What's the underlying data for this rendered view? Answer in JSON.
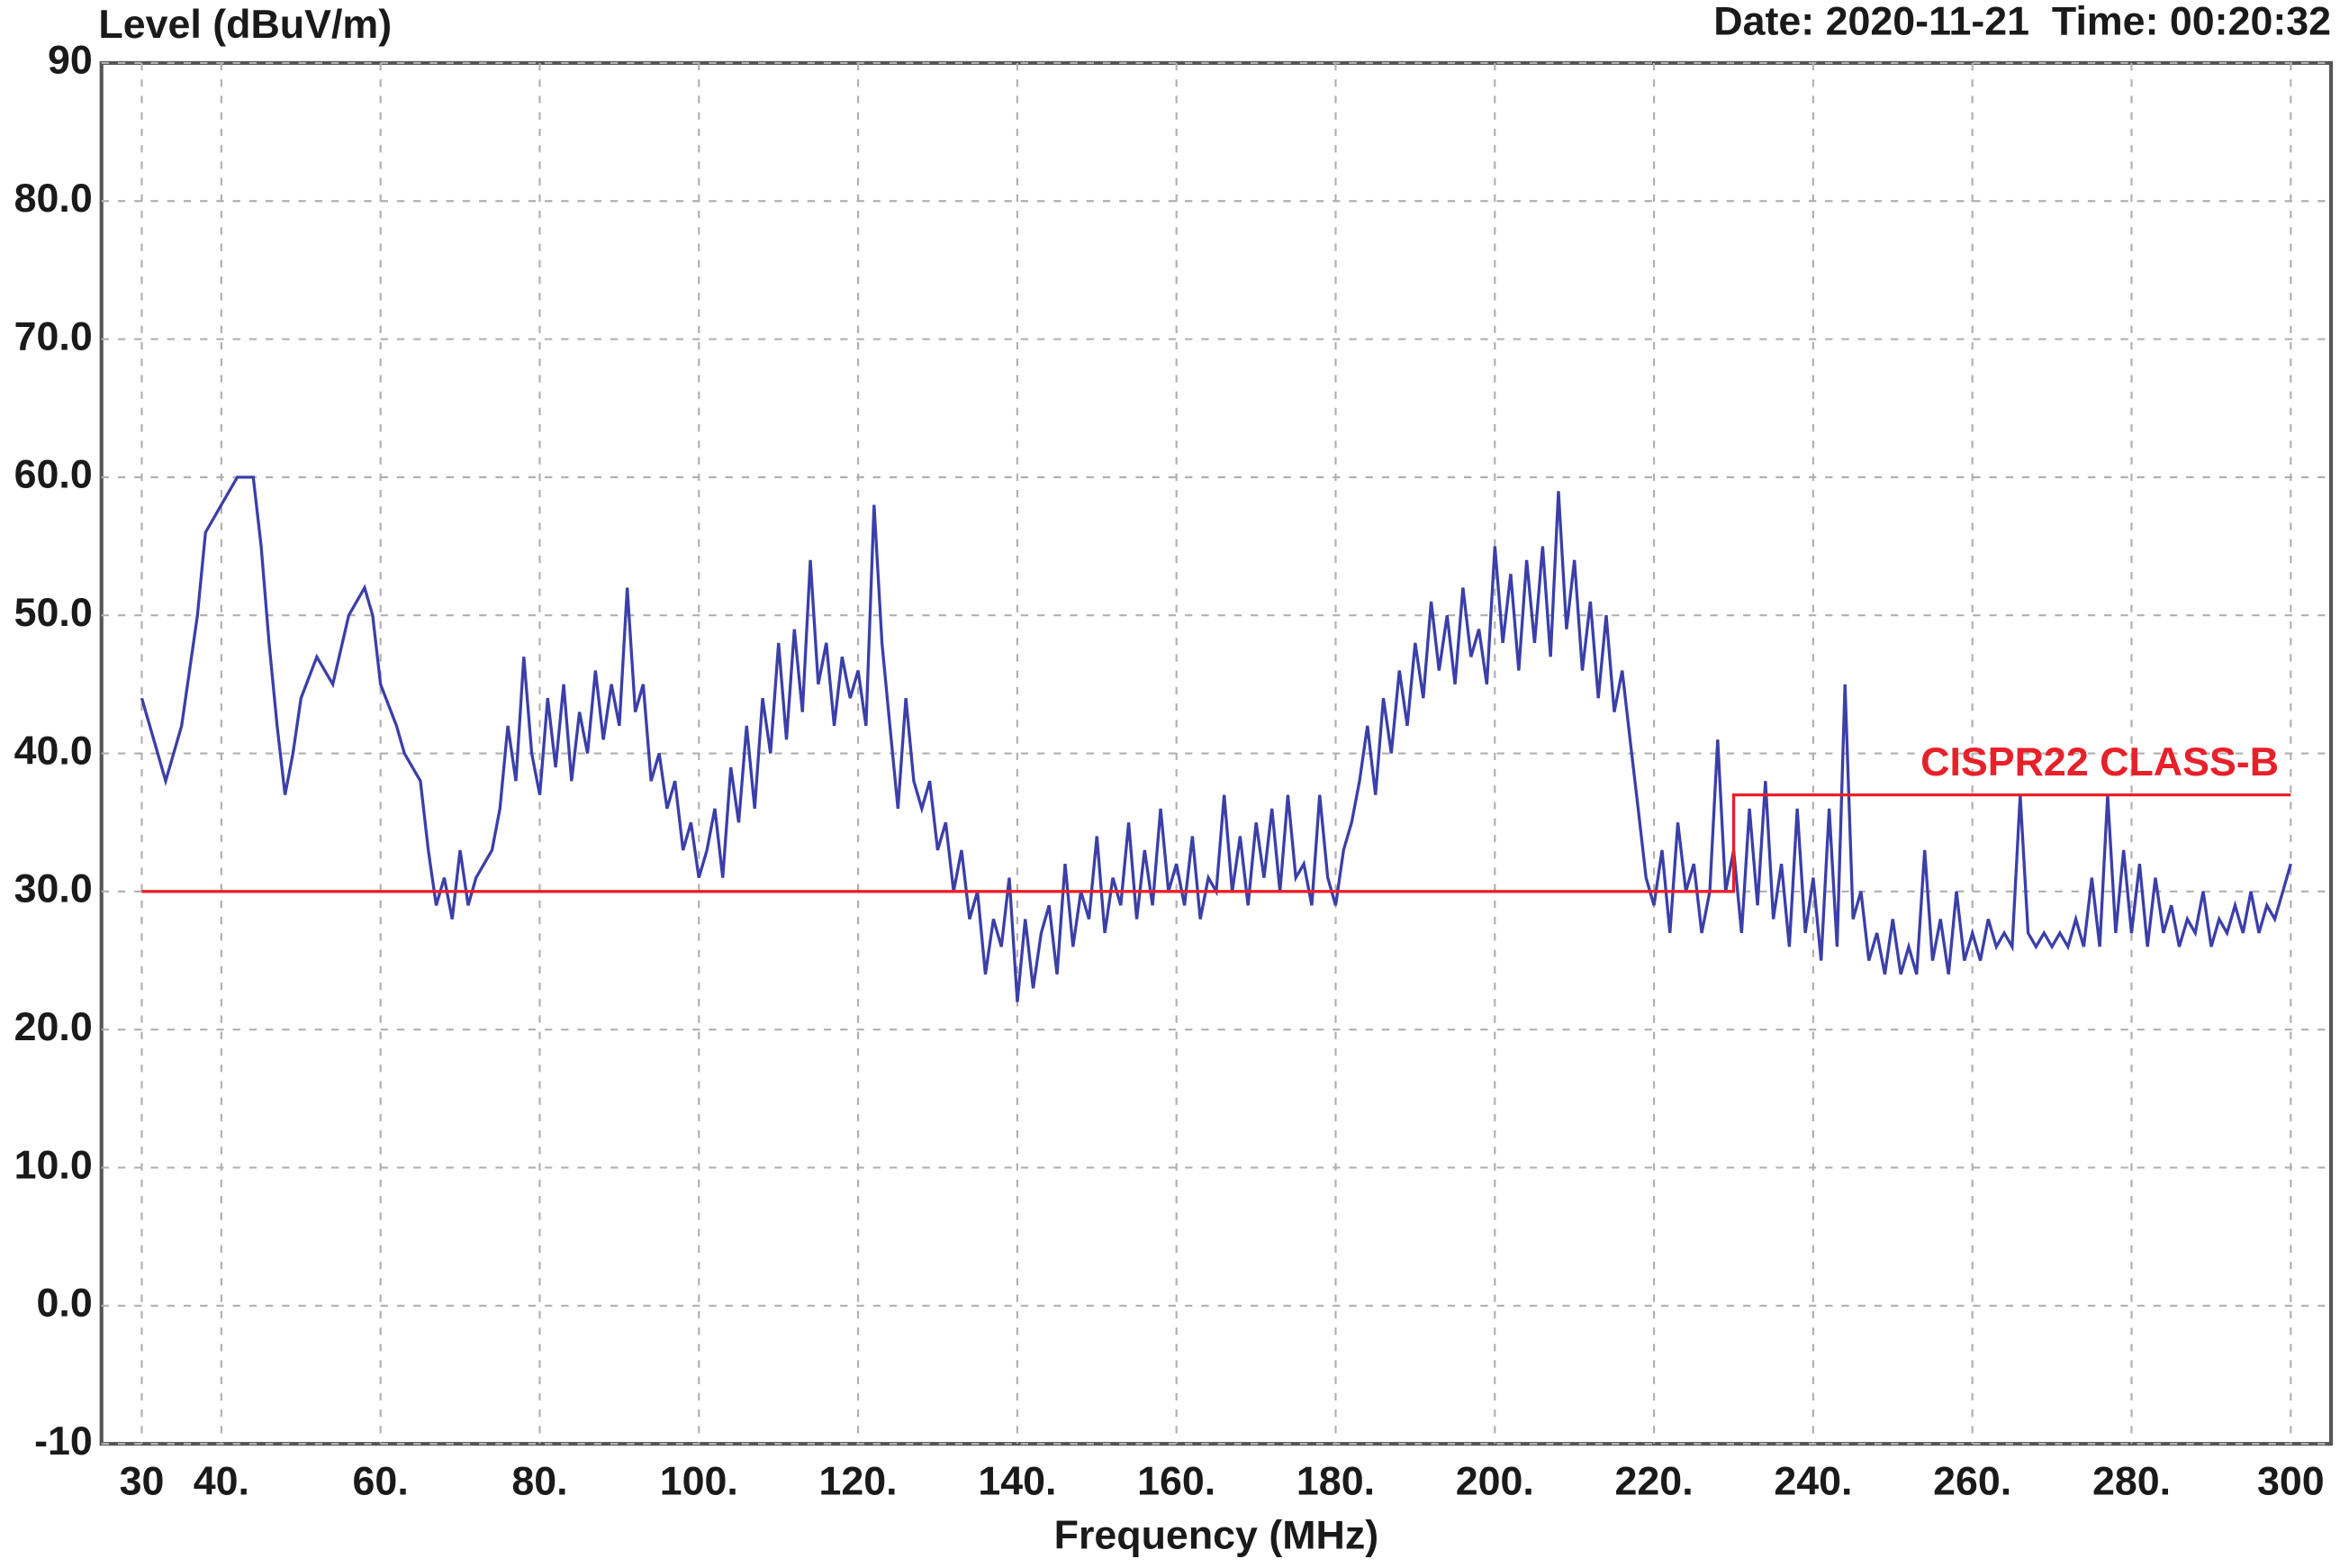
{
  "chart_data": {
    "type": "line",
    "ylabel": "Level (dBuV/m)",
    "xlabel": "Frequency (MHz)",
    "header_note": "Date: 2020-11-21  Time: 00:20:32",
    "xlim": [
      30,
      300
    ],
    "ylim": [
      -10,
      90
    ],
    "xticks": [
      30,
      {
        "value": 40,
        "label": "40."
      },
      {
        "value": 60,
        "label": "60."
      },
      {
        "value": 80,
        "label": "80."
      },
      {
        "value": 100,
        "label": "100."
      },
      {
        "value": 120,
        "label": "120."
      },
      {
        "value": 140,
        "label": "140."
      },
      {
        "value": 160,
        "label": "160."
      },
      {
        "value": 180,
        "label": "180."
      },
      {
        "value": 200,
        "label": "200."
      },
      {
        "value": 220,
        "label": "220."
      },
      {
        "value": 240,
        "label": "240."
      },
      {
        "value": 260,
        "label": "260."
      },
      {
        "value": 280,
        "label": "280."
      },
      300
    ],
    "yticks": [
      -10,
      {
        "value": 0,
        "label": "0.0"
      },
      {
        "value": 10,
        "label": "10.0"
      },
      {
        "value": 20,
        "label": "20.0"
      },
      {
        "value": 30,
        "label": "30.0"
      },
      {
        "value": 40,
        "label": "40.0"
      },
      {
        "value": 50,
        "label": "50.0"
      },
      {
        "value": 60,
        "label": "60.0"
      },
      {
        "value": 70,
        "label": "70.0"
      },
      {
        "value": 80,
        "label": "80.0"
      },
      90
    ],
    "grid": true,
    "series": [
      {
        "color": "#3b3fa8",
        "x": [
          30,
          32,
          33,
          35,
          37,
          38,
          40,
          42,
          44,
          45,
          46,
          47,
          48,
          49,
          50,
          52,
          54,
          56,
          58,
          59,
          60,
          62,
          63,
          65,
          66,
          67,
          68,
          69,
          70,
          71,
          72,
          74,
          75,
          76,
          77,
          78,
          79,
          80,
          81,
          82,
          83,
          84,
          85,
          86,
          87,
          88,
          89,
          90,
          91,
          92,
          93,
          94,
          95,
          96,
          97,
          98,
          99,
          100,
          101,
          102,
          103,
          104,
          105,
          106,
          107,
          108,
          109,
          110,
          111,
          112,
          113,
          114,
          115,
          116,
          117,
          118,
          119,
          120,
          121,
          122,
          123,
          124,
          125,
          126,
          127,
          128,
          129,
          130,
          131,
          132,
          133,
          134,
          135,
          136,
          137,
          138,
          139,
          140,
          141,
          142,
          143,
          144,
          145,
          146,
          147,
          148,
          149,
          150,
          151,
          152,
          153,
          154,
          155,
          156,
          157,
          158,
          159,
          160,
          161,
          162,
          163,
          164,
          165,
          166,
          167,
          168,
          169,
          170,
          171,
          172,
          173,
          174,
          175,
          176,
          177,
          178,
          179,
          180,
          181,
          182,
          183,
          184,
          185,
          186,
          187,
          188,
          189,
          190,
          191,
          192,
          193,
          194,
          195,
          196,
          197,
          198,
          199,
          200,
          201,
          202,
          203,
          204,
          205,
          206,
          207,
          208,
          209,
          210,
          211,
          212,
          213,
          214,
          215,
          216,
          217,
          218,
          219,
          220,
          221,
          222,
          223,
          224,
          225,
          226,
          227,
          228,
          229,
          230,
          231,
          232,
          233,
          234,
          235,
          236,
          237,
          238,
          239,
          240,
          241,
          242,
          243,
          244,
          245,
          246,
          247,
          248,
          249,
          250,
          251,
          252,
          253,
          254,
          255,
          256,
          257,
          258,
          259,
          260,
          261,
          262,
          263,
          264,
          265,
          266,
          267,
          268,
          269,
          270,
          271,
          272,
          273,
          274,
          275,
          276,
          277,
          278,
          279,
          280,
          281,
          282,
          283,
          284,
          285,
          286,
          287,
          288,
          289,
          290,
          291,
          292,
          293,
          294,
          295,
          296,
          297,
          298,
          299,
          300
        ],
        "values": [
          44,
          40,
          38,
          42,
          50,
          56,
          58,
          60,
          60,
          55,
          48,
          42,
          37,
          40,
          44,
          47,
          45,
          50,
          52,
          50,
          45,
          42,
          40,
          38,
          33,
          29,
          31,
          28,
          33,
          29,
          31,
          33,
          36,
          42,
          38,
          47,
          40,
          37,
          44,
          39,
          45,
          38,
          43,
          40,
          46,
          41,
          45,
          42,
          52,
          43,
          45,
          38,
          40,
          36,
          38,
          33,
          35,
          31,
          33,
          36,
          31,
          39,
          35,
          42,
          36,
          44,
          40,
          48,
          41,
          49,
          43,
          54,
          45,
          48,
          42,
          47,
          44,
          46,
          42,
          58,
          48,
          42,
          36,
          44,
          38,
          36,
          38,
          33,
          35,
          30,
          33,
          28,
          30,
          24,
          28,
          26,
          31,
          22,
          28,
          23,
          27,
          29,
          24,
          32,
          26,
          30,
          28,
          34,
          27,
          31,
          29,
          35,
          28,
          33,
          29,
          36,
          30,
          32,
          29,
          34,
          28,
          31,
          30,
          37,
          30,
          34,
          29,
          35,
          31,
          36,
          30,
          37,
          31,
          32,
          29,
          37,
          31,
          29,
          33,
          35,
          38,
          42,
          37,
          44,
          40,
          46,
          42,
          48,
          44,
          51,
          46,
          50,
          45,
          52,
          47,
          49,
          45,
          55,
          48,
          53,
          46,
          54,
          48,
          55,
          47,
          59,
          49,
          54,
          46,
          51,
          44,
          50,
          43,
          46,
          41,
          36,
          31,
          29,
          33,
          27,
          35,
          30,
          32,
          27,
          30,
          41,
          30,
          33,
          27,
          36,
          29,
          38,
          28,
          32,
          26,
          36,
          27,
          31,
          25,
          36,
          26,
          45,
          28,
          30,
          25,
          27,
          24,
          28,
          24,
          26,
          24,
          33,
          25,
          28,
          24,
          30,
          25,
          27,
          25,
          28,
          26,
          27,
          26,
          37,
          27,
          26,
          27,
          26,
          27,
          26,
          28,
          26,
          31,
          26,
          37,
          27,
          33,
          27,
          32,
          26,
          31,
          27,
          29,
          26,
          28,
          27,
          30,
          26,
          28,
          27,
          29,
          27,
          30,
          27,
          29,
          28,
          30,
          32
        ]
      }
    ],
    "limit": {
      "label": "CISPR22 CLASS-B",
      "color": "#e8202a",
      "x": [
        30,
        230,
        230,
        300
      ],
      "values": [
        30,
        30,
        37,
        37
      ]
    }
  }
}
